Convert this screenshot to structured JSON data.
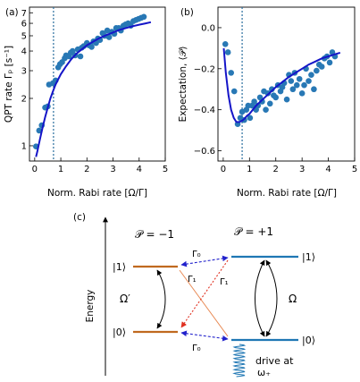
{
  "panel_labels": {
    "a": "(a)",
    "b": "(b)",
    "c": "(c)"
  },
  "chart_data": [
    {
      "panel": "(a)",
      "type": "scatter",
      "ylabel": "QPT rate Γₚ [s⁻¹]",
      "xlabel": "Norm. Rabi rate [Ω/Γ]",
      "xlim": [
        -0.2,
        5
      ],
      "ylim": [
        0.8,
        7.6
      ],
      "yscale": "log",
      "xticks": [
        0,
        1,
        2,
        3,
        4,
        5
      ],
      "yticks": [
        1,
        2,
        3,
        4,
        5,
        6,
        7
      ],
      "ytick_labels": [
        "1",
        "2",
        "3",
        "4",
        "5",
        "6",
        "7"
      ],
      "vline_x": 0.72,
      "points": [
        [
          0.05,
          0.99
        ],
        [
          0.17,
          1.25
        ],
        [
          0.27,
          1.35
        ],
        [
          0.4,
          1.75
        ],
        [
          0.5,
          1.78
        ],
        [
          0.55,
          2.45
        ],
        [
          0.7,
          2.5
        ],
        [
          0.8,
          2.6
        ],
        [
          0.9,
          3.15
        ],
        [
          0.97,
          3.3
        ],
        [
          1.05,
          3.4
        ],
        [
          1.15,
          3.6
        ],
        [
          1.2,
          3.75
        ],
        [
          1.32,
          3.7
        ],
        [
          1.38,
          3.9
        ],
        [
          1.45,
          4.0
        ],
        [
          1.55,
          3.75
        ],
        [
          1.65,
          4.1
        ],
        [
          1.75,
          3.7
        ],
        [
          1.8,
          4.2
        ],
        [
          1.88,
          4.3
        ],
        [
          2.0,
          4.5
        ],
        [
          2.08,
          4.35
        ],
        [
          2.18,
          4.25
        ],
        [
          2.25,
          4.6
        ],
        [
          2.35,
          4.5
        ],
        [
          2.42,
          4.8
        ],
        [
          2.5,
          4.7
        ],
        [
          2.6,
          5.2
        ],
        [
          2.68,
          5.0
        ],
        [
          2.78,
          5.4
        ],
        [
          2.85,
          4.9
        ],
        [
          2.95,
          5.3
        ],
        [
          3.05,
          5.15
        ],
        [
          3.12,
          5.6
        ],
        [
          3.22,
          5.6
        ],
        [
          3.3,
          5.4
        ],
        [
          3.4,
          5.8
        ],
        [
          3.48,
          5.9
        ],
        [
          3.58,
          6.0
        ],
        [
          3.68,
          5.8
        ],
        [
          3.78,
          6.2
        ],
        [
          3.88,
          6.3
        ],
        [
          3.98,
          6.4
        ],
        [
          4.08,
          6.5
        ],
        [
          4.18,
          6.6
        ]
      ],
      "fit": [
        [
          0.05,
          0.85
        ],
        [
          0.1,
          0.92
        ],
        [
          0.2,
          1.1
        ],
        [
          0.3,
          1.3
        ],
        [
          0.4,
          1.52
        ],
        [
          0.5,
          1.75
        ],
        [
          0.6,
          2.0
        ],
        [
          0.7,
          2.22
        ],
        [
          0.8,
          2.45
        ],
        [
          0.9,
          2.65
        ],
        [
          1.0,
          2.85
        ],
        [
          1.2,
          3.2
        ],
        [
          1.4,
          3.55
        ],
        [
          1.6,
          3.85
        ],
        [
          1.8,
          4.1
        ],
        [
          2.0,
          4.35
        ],
        [
          2.25,
          4.6
        ],
        [
          2.5,
          4.85
        ],
        [
          2.75,
          5.05
        ],
        [
          3.0,
          5.25
        ],
        [
          3.25,
          5.45
        ],
        [
          3.5,
          5.6
        ],
        [
          3.75,
          5.75
        ],
        [
          4.0,
          5.88
        ],
        [
          4.25,
          6.0
        ],
        [
          4.45,
          6.1
        ]
      ]
    },
    {
      "panel": "(b)",
      "type": "scatter",
      "ylabel": "Expectation, ⟨𝒫⟩",
      "xlabel": "Norm. Rabi rate [Ω/Γ]",
      "xlim": [
        -0.2,
        5
      ],
      "ylim": [
        -0.65,
        0.1
      ],
      "xticks": [
        0,
        1,
        2,
        3,
        4,
        5
      ],
      "yticks": [
        0.0,
        -0.2,
        -0.4,
        -0.6
      ],
      "ytick_labels": [
        "0.0",
        "−0.2",
        "−0.4",
        "−0.6"
      ],
      "vline_x": 0.72,
      "points": [
        [
          0.08,
          -0.08
        ],
        [
          0.18,
          -0.12
        ],
        [
          0.3,
          -0.22
        ],
        [
          0.42,
          -0.31
        ],
        [
          0.55,
          -0.47
        ],
        [
          0.65,
          -0.44
        ],
        [
          0.72,
          -0.41
        ],
        [
          0.8,
          -0.45
        ],
        [
          0.88,
          -0.4
        ],
        [
          0.95,
          -0.38
        ],
        [
          1.02,
          -0.44
        ],
        [
          1.1,
          -0.38
        ],
        [
          1.18,
          -0.36
        ],
        [
          1.25,
          -0.4
        ],
        [
          1.32,
          -0.38
        ],
        [
          1.4,
          -0.34
        ],
        [
          1.48,
          -0.36
        ],
        [
          1.55,
          -0.31
        ],
        [
          1.62,
          -0.4
        ],
        [
          1.7,
          -0.32
        ],
        [
          1.78,
          -0.37
        ],
        [
          1.85,
          -0.3
        ],
        [
          1.92,
          -0.33
        ],
        [
          2.0,
          -0.34
        ],
        [
          2.08,
          -0.28
        ],
        [
          2.18,
          -0.31
        ],
        [
          2.25,
          -0.29
        ],
        [
          2.32,
          -0.27
        ],
        [
          2.42,
          -0.35
        ],
        [
          2.5,
          -0.23
        ],
        [
          2.58,
          -0.26
        ],
        [
          2.65,
          -0.3
        ],
        [
          2.72,
          -0.22
        ],
        [
          2.8,
          -0.28
        ],
        [
          2.9,
          -0.25
        ],
        [
          3.0,
          -0.32
        ],
        [
          3.08,
          -0.28
        ],
        [
          3.15,
          -0.2
        ],
        [
          3.25,
          -0.26
        ],
        [
          3.35,
          -0.23
        ],
        [
          3.45,
          -0.3
        ],
        [
          3.55,
          -0.21
        ],
        [
          3.65,
          -0.18
        ],
        [
          3.75,
          -0.19
        ],
        [
          3.85,
          -0.15
        ],
        [
          3.95,
          -0.14
        ],
        [
          4.05,
          -0.17
        ],
        [
          4.15,
          -0.12
        ],
        [
          4.25,
          -0.14
        ]
      ],
      "fit": [
        [
          0.02,
          -0.1
        ],
        [
          0.1,
          -0.22
        ],
        [
          0.2,
          -0.33
        ],
        [
          0.3,
          -0.4
        ],
        [
          0.4,
          -0.44
        ],
        [
          0.5,
          -0.46
        ],
        [
          0.6,
          -0.46
        ],
        [
          0.7,
          -0.455
        ],
        [
          0.8,
          -0.445
        ],
        [
          0.9,
          -0.43
        ],
        [
          1.0,
          -0.42
        ],
        [
          1.25,
          -0.38
        ],
        [
          1.5,
          -0.35
        ],
        [
          1.75,
          -0.32
        ],
        [
          2.0,
          -0.29
        ],
        [
          2.25,
          -0.265
        ],
        [
          2.5,
          -0.24
        ],
        [
          2.75,
          -0.22
        ],
        [
          3.0,
          -0.2
        ],
        [
          3.25,
          -0.18
        ],
        [
          3.5,
          -0.165
        ],
        [
          3.75,
          -0.15
        ],
        [
          4.0,
          -0.14
        ],
        [
          4.25,
          -0.13
        ],
        [
          4.45,
          -0.122
        ]
      ]
    }
  ],
  "diagram": {
    "energy_label": "Energy",
    "left_parity": "𝒫 = −1",
    "right_parity": "𝒫 = +1",
    "left_ket_1": "|1⟩",
    "left_ket_0": "|0⟩",
    "right_ket_1": "|1⟩",
    "right_ket_0": "|0⟩",
    "omega_prime": "Ω′",
    "omega": "Ω",
    "gamma0_top": "Γ₀",
    "gamma0_bottom": "Γ₀",
    "gamma1_left": "Γ₁",
    "gamma1_right": "Γ₁",
    "drive_line1": "drive at",
    "drive_line2": "ω₊",
    "colors": {
      "left": "#c0691f",
      "right": "#1f77b4",
      "gamma0": "#2222cc",
      "gamma1": "#e03020",
      "cross": "#e88a55"
    }
  },
  "colors": {
    "points": "#2878b5",
    "fit": "#1515c8",
    "vline": "#2a6f9e"
  }
}
